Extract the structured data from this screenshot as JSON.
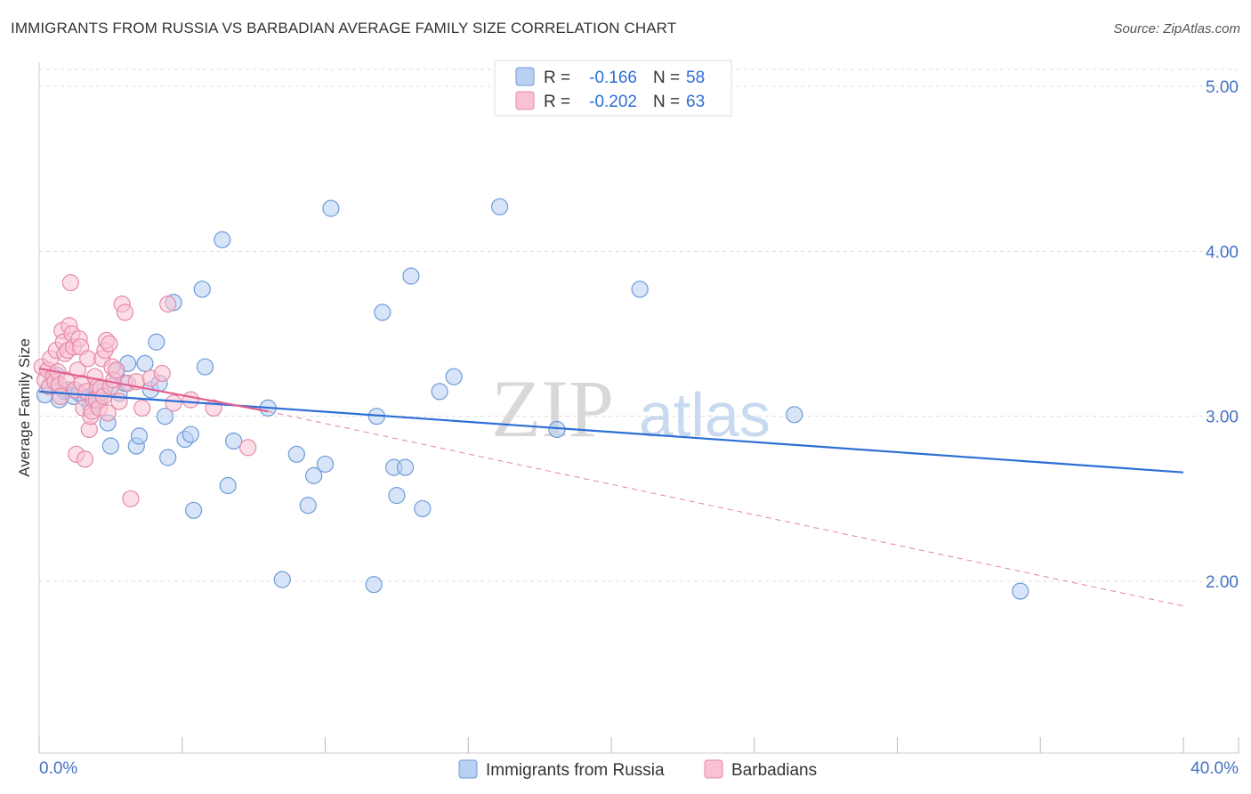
{
  "chart_data": {
    "type": "scatter",
    "title": "IMMIGRANTS FROM RUSSIA VS BARBADIAN AVERAGE FAMILY SIZE CORRELATION CHART",
    "source": "Source: ZipAtlas.com",
    "xlabel": "",
    "ylabel": "Average Family Size",
    "xlim": [
      0,
      40
    ],
    "ylim": [
      1.0,
      5.3
    ],
    "x_tick_labels": [
      "0.0%",
      "40.0%"
    ],
    "y_ticks": [
      2.0,
      3.0,
      4.0,
      5.0
    ],
    "y_tick_labels": [
      "2.00",
      "3.00",
      "4.00",
      "5.00"
    ],
    "watermark": {
      "zip": "ZIP",
      "atlas": "atlas"
    },
    "legend": {
      "r_label": "R =",
      "n_label": "N =",
      "entries": [
        {
          "r": "-0.166",
          "n": "58"
        },
        {
          "r": "-0.202",
          "n": "63"
        }
      ]
    },
    "colors": {
      "russia_fill": "#b8d0f2",
      "russia_stroke": "#6e9bd8",
      "russia_line": "#2d6fd6",
      "barb_fill": "#f9c2d3",
      "barb_stroke": "#e58aa8",
      "barb_line": "#e06090",
      "label_value": "#2d6fd6"
    },
    "series": [
      {
        "name": "Immigrants from Russia",
        "trend": {
          "x": [
            0,
            40
          ],
          "y": [
            3.15,
            2.66
          ],
          "dashed": false
        },
        "points": [
          [
            0.2,
            3.13
          ],
          [
            0.4,
            3.18
          ],
          [
            0.6,
            3.25
          ],
          [
            0.7,
            3.1
          ],
          [
            0.9,
            3.15
          ],
          [
            1.0,
            3.16
          ],
          [
            1.2,
            3.12
          ],
          [
            1.4,
            3.14
          ],
          [
            1.6,
            3.11
          ],
          [
            1.8,
            3.06
          ],
          [
            2.0,
            3.15
          ],
          [
            2.1,
            3.1
          ],
          [
            2.3,
            3.17
          ],
          [
            2.4,
            2.96
          ],
          [
            2.5,
            2.82
          ],
          [
            2.7,
            3.27
          ],
          [
            2.8,
            3.14
          ],
          [
            3.0,
            3.2
          ],
          [
            3.1,
            3.32
          ],
          [
            3.4,
            2.82
          ],
          [
            3.5,
            2.88
          ],
          [
            3.7,
            3.32
          ],
          [
            3.9,
            3.16
          ],
          [
            4.1,
            3.45
          ],
          [
            4.2,
            3.2
          ],
          [
            4.4,
            3.0
          ],
          [
            4.5,
            2.75
          ],
          [
            4.7,
            3.69
          ],
          [
            5.1,
            2.86
          ],
          [
            5.3,
            2.89
          ],
          [
            5.4,
            2.43
          ],
          [
            5.7,
            3.77
          ],
          [
            5.8,
            3.3
          ],
          [
            6.4,
            4.07
          ],
          [
            6.6,
            2.58
          ],
          [
            6.8,
            2.85
          ],
          [
            8.0,
            3.05
          ],
          [
            8.5,
            2.01
          ],
          [
            9.0,
            2.77
          ],
          [
            9.4,
            2.46
          ],
          [
            9.6,
            2.64
          ],
          [
            10.0,
            2.71
          ],
          [
            10.2,
            4.26
          ],
          [
            11.7,
            1.98
          ],
          [
            11.8,
            3.0
          ],
          [
            12.0,
            3.63
          ],
          [
            12.4,
            2.69
          ],
          [
            12.5,
            2.52
          ],
          [
            12.8,
            2.69
          ],
          [
            13.0,
            3.85
          ],
          [
            13.4,
            2.44
          ],
          [
            14.0,
            3.15
          ],
          [
            14.5,
            3.24
          ],
          [
            16.1,
            4.27
          ],
          [
            18.1,
            2.92
          ],
          [
            21.0,
            3.77
          ],
          [
            26.4,
            3.01
          ],
          [
            34.3,
            1.94
          ]
        ]
      },
      {
        "name": "Barbadians",
        "trend": {
          "x": [
            0,
            8
          ],
          "y": [
            3.29,
            3.03
          ],
          "dashed": false,
          "extension": {
            "x": [
              8,
              40
            ],
            "y": [
              3.03,
              1.85
            ],
            "dashed": true
          }
        },
        "points": [
          [
            0.1,
            3.3
          ],
          [
            0.2,
            3.22
          ],
          [
            0.3,
            3.28
          ],
          [
            0.35,
            3.18
          ],
          [
            0.4,
            3.35
          ],
          [
            0.5,
            3.24
          ],
          [
            0.55,
            3.21
          ],
          [
            0.6,
            3.4
          ],
          [
            0.65,
            3.27
          ],
          [
            0.7,
            3.19
          ],
          [
            0.75,
            3.12
          ],
          [
            0.8,
            3.52
          ],
          [
            0.85,
            3.45
          ],
          [
            0.9,
            3.38
          ],
          [
            0.95,
            3.22
          ],
          [
            1.0,
            3.4
          ],
          [
            1.05,
            3.55
          ],
          [
            1.1,
            3.81
          ],
          [
            1.15,
            3.5
          ],
          [
            1.2,
            3.42
          ],
          [
            1.25,
            3.16
          ],
          [
            1.3,
            2.77
          ],
          [
            1.35,
            3.28
          ],
          [
            1.4,
            3.47
          ],
          [
            1.45,
            3.42
          ],
          [
            1.5,
            3.2
          ],
          [
            1.55,
            3.05
          ],
          [
            1.6,
            2.74
          ],
          [
            1.65,
            3.15
          ],
          [
            1.7,
            3.35
          ],
          [
            1.75,
            2.92
          ],
          [
            1.8,
            3.0
          ],
          [
            1.85,
            3.03
          ],
          [
            1.9,
            3.1
          ],
          [
            1.95,
            3.24
          ],
          [
            2.0,
            3.1
          ],
          [
            2.05,
            3.18
          ],
          [
            2.1,
            3.05
          ],
          [
            2.15,
            3.17
          ],
          [
            2.2,
            3.35
          ],
          [
            2.25,
            3.12
          ],
          [
            2.3,
            3.4
          ],
          [
            2.35,
            3.46
          ],
          [
            2.4,
            3.02
          ],
          [
            2.45,
            3.44
          ],
          [
            2.5,
            3.18
          ],
          [
            2.55,
            3.3
          ],
          [
            2.6,
            3.22
          ],
          [
            2.7,
            3.28
          ],
          [
            2.8,
            3.09
          ],
          [
            2.9,
            3.68
          ],
          [
            3.0,
            3.63
          ],
          [
            3.1,
            3.2
          ],
          [
            3.2,
            2.5
          ],
          [
            3.4,
            3.21
          ],
          [
            3.6,
            3.05
          ],
          [
            3.9,
            3.23
          ],
          [
            4.3,
            3.26
          ],
          [
            4.5,
            3.68
          ],
          [
            4.7,
            3.08
          ],
          [
            5.3,
            3.1
          ],
          [
            6.1,
            3.05
          ],
          [
            7.3,
            2.81
          ]
        ]
      }
    ]
  }
}
